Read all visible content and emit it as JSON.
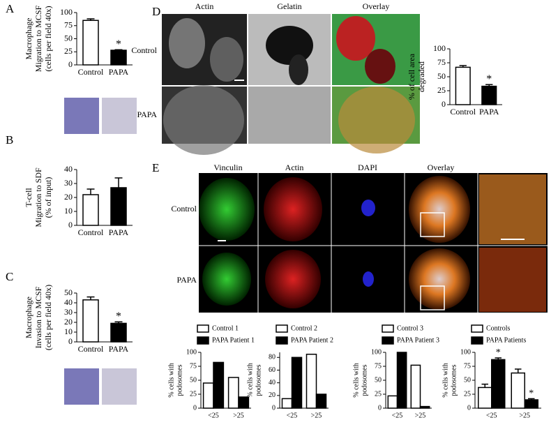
{
  "panels": [
    "A",
    "B",
    "C",
    "D",
    "E"
  ],
  "images": {
    "D": {
      "columns": [
        "Actin",
        "Gelatin",
        "Overlay"
      ],
      "rows": [
        "Control",
        "PAPA"
      ]
    },
    "E": {
      "columns": [
        "Vinculin",
        "Actin",
        "DAPI",
        "Overlay"
      ],
      "rows": [
        "Control",
        "PAPA"
      ]
    }
  },
  "chart_data": [
    {
      "type": "bar",
      "ylabel": [
        "Macrophage",
        "Migration to MCSF",
        "(cells per field 40x)"
      ],
      "categories": [
        "Control",
        "PAPA"
      ],
      "values": [
        85,
        28
      ],
      "errors": [
        3,
        1
      ],
      "colors": [
        "#ffffff",
        "#000000"
      ],
      "value_labels": [
        null,
        "*"
      ],
      "ylim": [
        0,
        100
      ],
      "yticks": [
        0,
        25,
        50,
        75,
        100
      ]
    },
    {
      "type": "bar",
      "ylabel": [
        "T-cell",
        "Migration to SDF",
        "(% of input)"
      ],
      "categories": [
        "Control",
        "PAPA"
      ],
      "values": [
        22,
        27
      ],
      "errors": [
        4,
        7
      ],
      "colors": [
        "#ffffff",
        "#000000"
      ],
      "value_labels": [
        null,
        null
      ],
      "ylim": [
        0,
        40
      ],
      "yticks": [
        0,
        10,
        20,
        30,
        40
      ]
    },
    {
      "type": "bar",
      "ylabel": [
        "Macrophage",
        "Invasion to MCSF",
        "(cells per field 40x)"
      ],
      "categories": [
        "Control",
        "PAPA"
      ],
      "values": [
        43,
        19
      ],
      "errors": [
        3,
        1.5
      ],
      "colors": [
        "#ffffff",
        "#000000"
      ],
      "value_labels": [
        null,
        "*"
      ],
      "ylim": [
        0,
        50
      ],
      "yticks": [
        0,
        10,
        20,
        30,
        40,
        50
      ]
    },
    {
      "type": "bar",
      "ylabel": [
        "% of cell area",
        "degraded"
      ],
      "categories": [
        "Control",
        "PAPA"
      ],
      "values": [
        67,
        33
      ],
      "errors": [
        3,
        3
      ],
      "colors": [
        "#ffffff",
        "#000000"
      ],
      "value_labels": [
        null,
        "*"
      ],
      "ylim": [
        0,
        100
      ],
      "yticks": [
        0,
        25,
        50,
        75,
        100
      ]
    },
    {
      "type": "grouped",
      "ylabel": [
        "% cells with",
        "podosomes"
      ],
      "categories": [
        "<25",
        ">25"
      ],
      "series": [
        {
          "name": "Control 1",
          "color": "#ffffff",
          "values": [
            45,
            55
          ]
        },
        {
          "name": "PAPA Patient 1",
          "color": "#000000",
          "values": [
            82,
            20
          ]
        }
      ],
      "ylim": [
        0,
        100
      ],
      "yticks": [
        0,
        25,
        50,
        75,
        100
      ]
    },
    {
      "type": "grouped",
      "ylabel": [
        "% cells with",
        "podosomes"
      ],
      "categories": [
        "<25",
        ">25"
      ],
      "series": [
        {
          "name": "Control 2",
          "color": "#ffffff",
          "values": [
            15,
            85
          ]
        },
        {
          "name": "PAPA Patient 2",
          "color": "#000000",
          "values": [
            80,
            22
          ]
        }
      ],
      "ylim": [
        0,
        88
      ],
      "yticks": [
        0,
        20,
        40,
        60,
        80
      ]
    },
    {
      "type": "grouped",
      "ylabel": [
        "% cells with",
        "podosomes"
      ],
      "categories": [
        "<25",
        ">25"
      ],
      "series": [
        {
          "name": "Control 3",
          "color": "#ffffff",
          "values": [
            22,
            77
          ]
        },
        {
          "name": "PAPA Patient 3",
          "color": "#000000",
          "values": [
            100,
            3
          ]
        }
      ],
      "ylim": [
        0,
        100
      ],
      "yticks": [
        0,
        25,
        50,
        75,
        100
      ]
    },
    {
      "type": "grouped",
      "ylabel": [
        "% cells with",
        "podosomes"
      ],
      "categories": [
        "<25",
        ">25"
      ],
      "series": [
        {
          "name": "Controls",
          "color": "#ffffff",
          "values": [
            37,
            63
          ],
          "errors": [
            6,
            7
          ],
          "value_labels": [
            null,
            null
          ]
        },
        {
          "name": "PAPA Patients",
          "color": "#000000",
          "values": [
            87,
            15
          ],
          "errors": [
            3,
            2
          ],
          "value_labels": [
            "*",
            "*"
          ]
        }
      ],
      "ylim": [
        0,
        100
      ],
      "yticks": [
        0,
        25,
        50,
        75,
        100
      ]
    }
  ]
}
